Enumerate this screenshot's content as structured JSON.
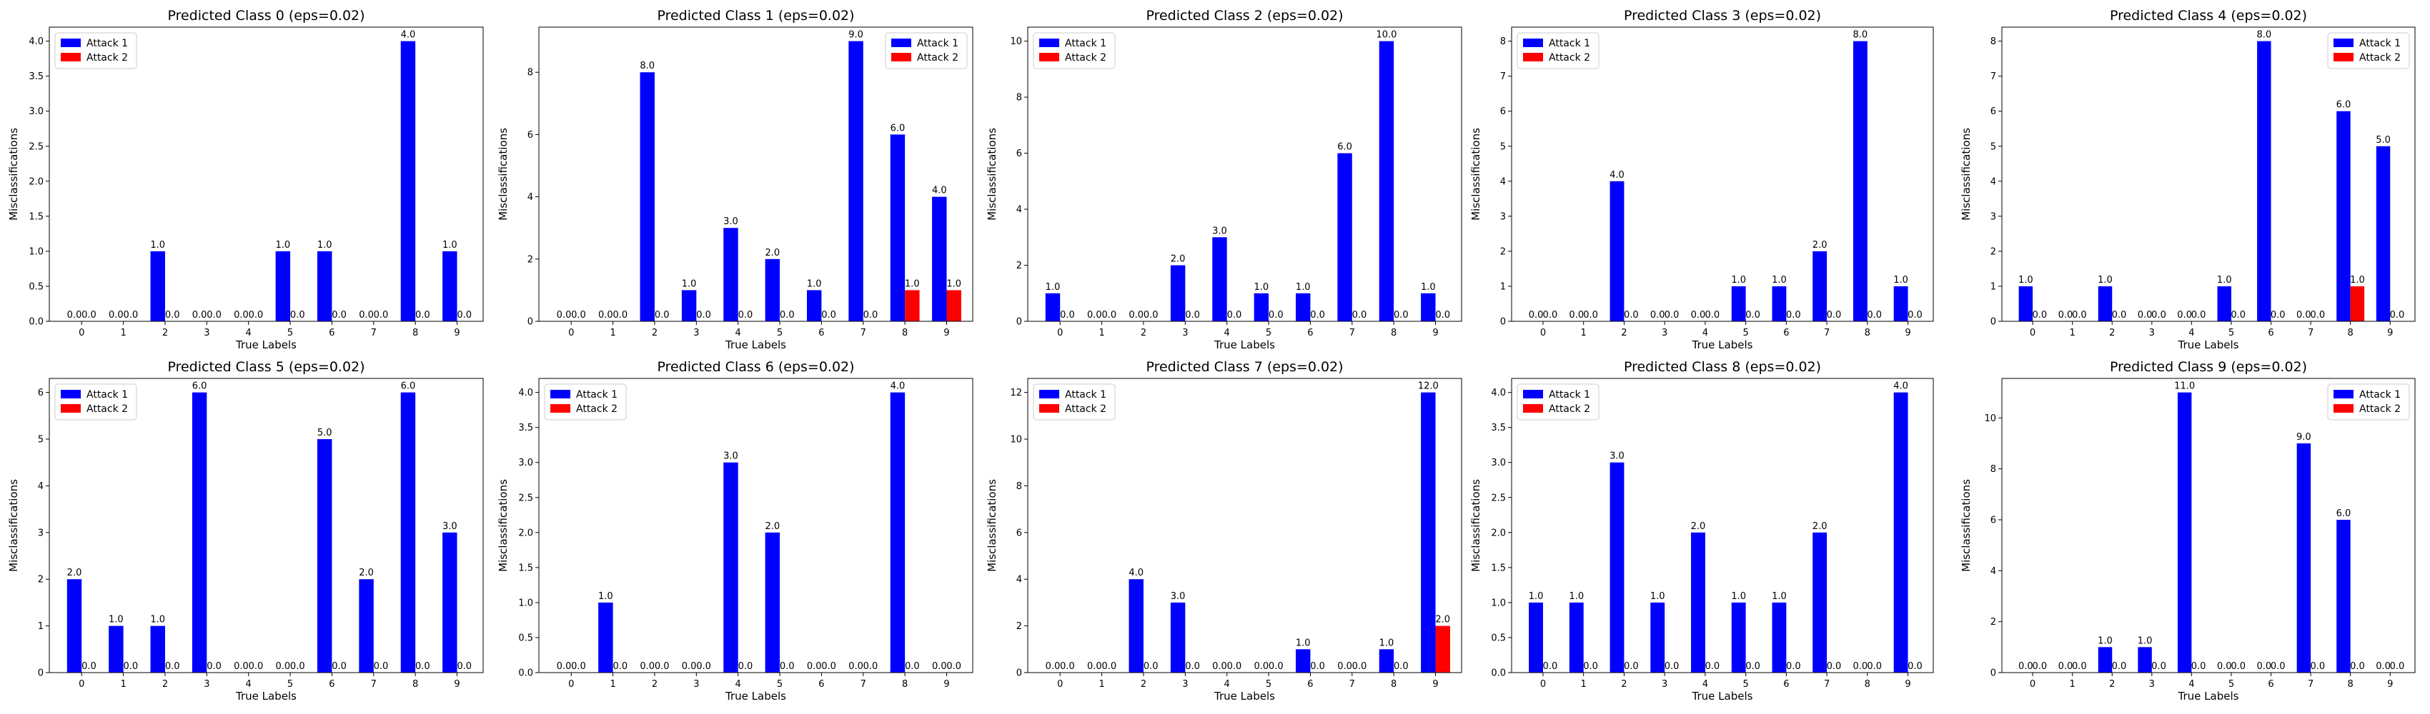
{
  "colors": {
    "attack1": "#0000ff",
    "attack2": "#ff0000"
  },
  "chart_data": [
    {
      "type": "bar",
      "title": "Predicted Class 0 (eps=0.02)",
      "xlabel": "True Labels",
      "ylabel": "Misclassifications",
      "categories": [
        "0",
        "1",
        "2",
        "3",
        "4",
        "5",
        "6",
        "7",
        "8",
        "9"
      ],
      "yticks": [
        "0.0",
        "0.5",
        "1.0",
        "1.5",
        "2.0",
        "2.5",
        "3.0",
        "3.5",
        "4.0"
      ],
      "ylim": [
        0,
        4.2
      ],
      "legend": "top-left",
      "grid": false,
      "series": [
        {
          "name": "Attack 1",
          "values": [
            0,
            0,
            1,
            0,
            0,
            1,
            1,
            0,
            4,
            1
          ],
          "labels": [
            "0.0",
            "0.0",
            "1.0",
            "0.0",
            "0.0",
            "1.0",
            "1.0",
            "0.0",
            "4.0",
            "1.0"
          ]
        },
        {
          "name": "Attack 2",
          "values": [
            0,
            0,
            0,
            0,
            0,
            0,
            0,
            0,
            0,
            0
          ],
          "labels": [
            "0.0",
            "0.0",
            "0.0",
            "0.0",
            "0.0",
            "0.0",
            "0.0",
            "0.0",
            "0.0",
            "0.0"
          ]
        }
      ]
    },
    {
      "type": "bar",
      "title": "Predicted Class 1 (eps=0.02)",
      "xlabel": "True Labels",
      "ylabel": "Misclassifications",
      "categories": [
        "0",
        "1",
        "2",
        "3",
        "4",
        "5",
        "6",
        "7",
        "8",
        "9"
      ],
      "yticks": [
        "0",
        "2",
        "4",
        "6",
        "8"
      ],
      "ylim": [
        0,
        9.45
      ],
      "legend": "top-right",
      "grid": false,
      "series": [
        {
          "name": "Attack 1",
          "values": [
            0,
            0,
            8,
            1,
            3,
            2,
            1,
            9,
            6,
            4
          ],
          "labels": [
            "0.0",
            "0.0",
            "8.0",
            "1.0",
            "3.0",
            "2.0",
            "1.0",
            "9.0",
            "6.0",
            "4.0"
          ]
        },
        {
          "name": "Attack 2",
          "values": [
            0,
            0,
            0,
            0,
            0,
            0,
            0,
            0,
            1,
            1
          ],
          "labels": [
            "0.0",
            "0.0",
            "0.0",
            "0.0",
            "0.0",
            "0.0",
            "0.0",
            "0.0",
            "1.0",
            "1.0"
          ]
        }
      ]
    },
    {
      "type": "bar",
      "title": "Predicted Class 2 (eps=0.02)",
      "xlabel": "True Labels",
      "ylabel": "Misclassifications",
      "categories": [
        "0",
        "1",
        "2",
        "3",
        "4",
        "5",
        "6",
        "7",
        "8",
        "9"
      ],
      "yticks": [
        "0",
        "2",
        "4",
        "6",
        "8",
        "10"
      ],
      "ylim": [
        0,
        10.5
      ],
      "legend": "top-left",
      "grid": false,
      "series": [
        {
          "name": "Attack 1",
          "values": [
            1,
            0,
            0,
            2,
            3,
            1,
            1,
            6,
            10,
            1
          ],
          "labels": [
            "1.0",
            "0.0",
            "0.0",
            "2.0",
            "3.0",
            "1.0",
            "1.0",
            "6.0",
            "10.0",
            "1.0"
          ]
        },
        {
          "name": "Attack 2",
          "values": [
            0,
            0,
            0,
            0,
            0,
            0,
            0,
            0,
            0,
            0
          ],
          "labels": [
            "0.0",
            "0.0",
            "0.0",
            "0.0",
            "0.0",
            "0.0",
            "0.0",
            "0.0",
            "0.0",
            "0.0"
          ]
        }
      ]
    },
    {
      "type": "bar",
      "title": "Predicted Class 3 (eps=0.02)",
      "xlabel": "True Labels",
      "ylabel": "Misclassifications",
      "categories": [
        "0",
        "1",
        "2",
        "3",
        "4",
        "5",
        "6",
        "7",
        "8",
        "9"
      ],
      "yticks": [
        "0",
        "1",
        "2",
        "3",
        "4",
        "5",
        "6",
        "7",
        "8"
      ],
      "ylim": [
        0,
        8.4
      ],
      "legend": "top-left",
      "grid": false,
      "series": [
        {
          "name": "Attack 1",
          "values": [
            0,
            0,
            4,
            0,
            0,
            1,
            1,
            2,
            8,
            1
          ],
          "labels": [
            "0.0",
            "0.0",
            "4.0",
            "0.0",
            "0.0",
            "1.0",
            "1.0",
            "2.0",
            "8.0",
            "1.0"
          ]
        },
        {
          "name": "Attack 2",
          "values": [
            0,
            0,
            0,
            0,
            0,
            0,
            0,
            0,
            0,
            0
          ],
          "labels": [
            "0.0",
            "0.0",
            "0.0",
            "0.0",
            "0.0",
            "0.0",
            "0.0",
            "0.0",
            "0.0",
            "0.0"
          ]
        }
      ]
    },
    {
      "type": "bar",
      "title": "Predicted Class 4 (eps=0.02)",
      "xlabel": "True Labels",
      "ylabel": "Misclassifications",
      "categories": [
        "0",
        "1",
        "2",
        "3",
        "4",
        "5",
        "6",
        "7",
        "8",
        "9"
      ],
      "yticks": [
        "0",
        "1",
        "2",
        "3",
        "4",
        "5",
        "6",
        "7",
        "8"
      ],
      "ylim": [
        0,
        8.4
      ],
      "legend": "top-right",
      "grid": false,
      "series": [
        {
          "name": "Attack 1",
          "values": [
            1,
            0,
            1,
            0,
            0,
            1,
            8,
            0,
            6,
            5
          ],
          "labels": [
            "1.0",
            "0.0",
            "1.0",
            "0.0",
            "0.0",
            "1.0",
            "8.0",
            "0.0",
            "6.0",
            "5.0"
          ]
        },
        {
          "name": "Attack 2",
          "values": [
            0,
            0,
            0,
            0,
            0,
            0,
            0,
            0,
            1,
            0
          ],
          "labels": [
            "0.0",
            "0.0",
            "0.0",
            "0.0",
            "0.0",
            "0.0",
            "0.0",
            "0.0",
            "1.0",
            "0.0"
          ]
        }
      ]
    },
    {
      "type": "bar",
      "title": "Predicted Class 5 (eps=0.02)",
      "xlabel": "True Labels",
      "ylabel": "Misclassifications",
      "categories": [
        "0",
        "1",
        "2",
        "3",
        "4",
        "5",
        "6",
        "7",
        "8",
        "9"
      ],
      "yticks": [
        "0",
        "1",
        "2",
        "3",
        "4",
        "5",
        "6"
      ],
      "ylim": [
        0,
        6.3
      ],
      "legend": "top-left",
      "grid": false,
      "series": [
        {
          "name": "Attack 1",
          "values": [
            2,
            1,
            1,
            6,
            0,
            0,
            5,
            2,
            6,
            3
          ],
          "labels": [
            "2.0",
            "1.0",
            "1.0",
            "6.0",
            "0.0",
            "0.0",
            "5.0",
            "2.0",
            "6.0",
            "3.0"
          ]
        },
        {
          "name": "Attack 2",
          "values": [
            0,
            0,
            0,
            0,
            0,
            0,
            0,
            0,
            0,
            0
          ],
          "labels": [
            "0.0",
            "0.0",
            "0.0",
            "0.0",
            "0.0",
            "0.0",
            "0.0",
            "0.0",
            "0.0",
            "0.0"
          ]
        }
      ]
    },
    {
      "type": "bar",
      "title": "Predicted Class 6 (eps=0.02)",
      "xlabel": "True Labels",
      "ylabel": "Misclassifications",
      "categories": [
        "0",
        "1",
        "2",
        "3",
        "4",
        "5",
        "6",
        "7",
        "8",
        "9"
      ],
      "yticks": [
        "0.0",
        "0.5",
        "1.0",
        "1.5",
        "2.0",
        "2.5",
        "3.0",
        "3.5",
        "4.0"
      ],
      "ylim": [
        0,
        4.2
      ],
      "legend": "top-left",
      "grid": false,
      "series": [
        {
          "name": "Attack 1",
          "values": [
            0,
            1,
            0,
            0,
            3,
            2,
            0,
            0,
            4,
            0
          ],
          "labels": [
            "0.0",
            "1.0",
            "0.0",
            "0.0",
            "3.0",
            "2.0",
            "0.0",
            "0.0",
            "4.0",
            "0.0"
          ]
        },
        {
          "name": "Attack 2",
          "values": [
            0,
            0,
            0,
            0,
            0,
            0,
            0,
            0,
            0,
            0
          ],
          "labels": [
            "0.0",
            "0.0",
            "0.0",
            "0.0",
            "0.0",
            "0.0",
            "0.0",
            "0.0",
            "0.0",
            "0.0"
          ]
        }
      ]
    },
    {
      "type": "bar",
      "title": "Predicted Class 7 (eps=0.02)",
      "xlabel": "True Labels",
      "ylabel": "Misclassifications",
      "categories": [
        "0",
        "1",
        "2",
        "3",
        "4",
        "5",
        "6",
        "7",
        "8",
        "9"
      ],
      "yticks": [
        "0",
        "2",
        "4",
        "6",
        "8",
        "10",
        "12"
      ],
      "ylim": [
        0,
        12.6
      ],
      "legend": "top-left",
      "grid": false,
      "series": [
        {
          "name": "Attack 1",
          "values": [
            0,
            0,
            4,
            3,
            0,
            0,
            1,
            0,
            1,
            12
          ],
          "labels": [
            "0.0",
            "0.0",
            "4.0",
            "3.0",
            "0.0",
            "0.0",
            "1.0",
            "0.0",
            "1.0",
            "12.0"
          ]
        },
        {
          "name": "Attack 2",
          "values": [
            0,
            0,
            0,
            0,
            0,
            0,
            0,
            0,
            0,
            2
          ],
          "labels": [
            "0.0",
            "0.0",
            "0.0",
            "0.0",
            "0.0",
            "0.0",
            "0.0",
            "0.0",
            "0.0",
            "2.0"
          ]
        }
      ]
    },
    {
      "type": "bar",
      "title": "Predicted Class 8 (eps=0.02)",
      "xlabel": "True Labels",
      "ylabel": "Misclassifications",
      "categories": [
        "0",
        "1",
        "2",
        "3",
        "4",
        "5",
        "6",
        "7",
        "8",
        "9"
      ],
      "yticks": [
        "0.0",
        "0.5",
        "1.0",
        "1.5",
        "2.0",
        "2.5",
        "3.0",
        "3.5",
        "4.0"
      ],
      "ylim": [
        0,
        4.2
      ],
      "legend": "top-left",
      "grid": false,
      "series": [
        {
          "name": "Attack 1",
          "values": [
            1,
            1,
            3,
            1,
            2,
            1,
            1,
            2,
            0,
            4
          ],
          "labels": [
            "1.0",
            "1.0",
            "3.0",
            "1.0",
            "2.0",
            "1.0",
            "1.0",
            "2.0",
            "0.0",
            "4.0"
          ]
        },
        {
          "name": "Attack 2",
          "values": [
            0,
            0,
            0,
            0,
            0,
            0,
            0,
            0,
            0,
            0
          ],
          "labels": [
            "0.0",
            "0.0",
            "0.0",
            "0.0",
            "0.0",
            "0.0",
            "0.0",
            "0.0",
            "0.0",
            "0.0"
          ]
        }
      ]
    },
    {
      "type": "bar",
      "title": "Predicted Class 9 (eps=0.02)",
      "xlabel": "True Labels",
      "ylabel": "Misclassifications",
      "categories": [
        "0",
        "1",
        "2",
        "3",
        "4",
        "5",
        "6",
        "7",
        "8",
        "9"
      ],
      "yticks": [
        "0",
        "2",
        "4",
        "6",
        "8",
        "10"
      ],
      "ylim": [
        0,
        11.55
      ],
      "legend": "top-right",
      "grid": false,
      "series": [
        {
          "name": "Attack 1",
          "values": [
            0,
            0,
            1,
            1,
            11,
            0,
            0,
            9,
            6,
            0
          ],
          "labels": [
            "0.0",
            "0.0",
            "1.0",
            "1.0",
            "11.0",
            "0.0",
            "0.0",
            "9.0",
            "6.0",
            "0.0"
          ]
        },
        {
          "name": "Attack 2",
          "values": [
            0,
            0,
            0,
            0,
            0,
            0,
            0,
            0,
            0,
            0
          ],
          "labels": [
            "0.0",
            "0.0",
            "0.0",
            "0.0",
            "0.0",
            "0.0",
            "0.0",
            "0.0",
            "0.0",
            "0.0"
          ]
        }
      ]
    }
  ]
}
